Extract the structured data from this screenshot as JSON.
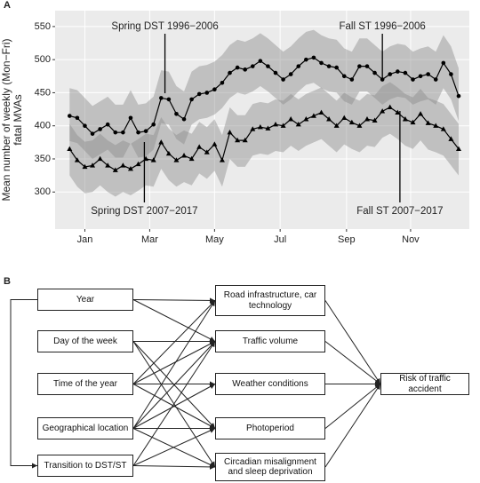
{
  "chart_data": {
    "type": "line",
    "panel_label": "A",
    "y_label": [
      "Mean number of weekly (Mon−Fri)",
      "fatal MVAs"
    ],
    "x": [
      1,
      2,
      3,
      4,
      5,
      6,
      7,
      8,
      9,
      10,
      11,
      12,
      13,
      14,
      15,
      16,
      17,
      18,
      19,
      20,
      21,
      22,
      23,
      24,
      25,
      26,
      27,
      28,
      29,
      30,
      31,
      32,
      33,
      34,
      35,
      36,
      37,
      38,
      39,
      40,
      41,
      42,
      43,
      44,
      45,
      46,
      47,
      48,
      49,
      50,
      51,
      52
    ],
    "xlim": [
      -0.9,
      53.4
    ],
    "xticks": [
      {
        "value": 3,
        "label": "Jan"
      },
      {
        "value": 11.5,
        "label": "Mar"
      },
      {
        "value": 20,
        "label": "May"
      },
      {
        "value": 28.6,
        "label": "Jul"
      },
      {
        "value": 37.3,
        "label": "Sep"
      },
      {
        "value": 45.7,
        "label": "Nov"
      }
    ],
    "ylim": [
      244,
      574
    ],
    "yticks": [
      300,
      350,
      400,
      450,
      500,
      550
    ],
    "grid": true,
    "series": [
      {
        "name": "1996−2006",
        "color": "#000000",
        "band_color": "#8c8c8c",
        "marker": "circle",
        "values": [
          415,
          412,
          400,
          388,
          395,
          402,
          390,
          390,
          412,
          390,
          392,
          402,
          442,
          440,
          418,
          410,
          440,
          448,
          450,
          455,
          465,
          480,
          488,
          485,
          490,
          498,
          490,
          480,
          470,
          478,
          490,
          500,
          503,
          495,
          490,
          488,
          475,
          470,
          490,
          490,
          480,
          470,
          478,
          482,
          480,
          470,
          475,
          478,
          470,
          495,
          478,
          445
        ],
        "upper": [
          457,
          454,
          442,
          430,
          437,
          444,
          432,
          432,
          454,
          432,
          434,
          444,
          484,
          482,
          460,
          452,
          482,
          490,
          492,
          497,
          507,
          522,
          530,
          527,
          532,
          540,
          532,
          522,
          512,
          520,
          532,
          542,
          545,
          537,
          532,
          530,
          517,
          512,
          532,
          532,
          522,
          512,
          520,
          524,
          522,
          512,
          517,
          520,
          512,
          537,
          520,
          487
        ],
        "lower": [
          377,
          374,
          362,
          350,
          357,
          364,
          352,
          352,
          374,
          352,
          354,
          364,
          404,
          402,
          380,
          372,
          402,
          410,
          412,
          417,
          427,
          442,
          450,
          447,
          452,
          460,
          452,
          442,
          432,
          440,
          452,
          462,
          465,
          457,
          452,
          450,
          437,
          432,
          452,
          452,
          442,
          432,
          440,
          444,
          442,
          432,
          437,
          440,
          432,
          457,
          440,
          407
        ]
      },
      {
        "name": "2007−2017",
        "color": "#000000",
        "band_color": "#8c8c8c",
        "marker": "triangle",
        "values": [
          365,
          348,
          338,
          340,
          350,
          340,
          333,
          340,
          335,
          342,
          350,
          348,
          375,
          358,
          348,
          355,
          350,
          368,
          360,
          372,
          348,
          390,
          378,
          378,
          395,
          398,
          396,
          402,
          400,
          410,
          402,
          410,
          415,
          420,
          410,
          400,
          412,
          405,
          400,
          410,
          408,
          422,
          428,
          420,
          410,
          405,
          418,
          404,
          400,
          395,
          380,
          365
        ],
        "upper": [
          403,
          386,
          376,
          378,
          388,
          378,
          371,
          378,
          373,
          380,
          388,
          386,
          413,
          396,
          386,
          393,
          388,
          406,
          398,
          410,
          386,
          428,
          416,
          416,
          433,
          436,
          434,
          440,
          438,
          448,
          440,
          448,
          453,
          458,
          448,
          438,
          450,
          443,
          438,
          448,
          446,
          460,
          466,
          458,
          448,
          443,
          456,
          442,
          438,
          433,
          418,
          403
        ],
        "lower": [
          325,
          308,
          298,
          300,
          310,
          300,
          293,
          300,
          295,
          302,
          310,
          308,
          335,
          318,
          308,
          315,
          310,
          328,
          320,
          332,
          308,
          350,
          338,
          338,
          355,
          358,
          356,
          362,
          360,
          370,
          362,
          370,
          375,
          380,
          370,
          360,
          372,
          365,
          360,
          370,
          368,
          382,
          388,
          380,
          370,
          365,
          378,
          364,
          360,
          355,
          340,
          325
        ]
      }
    ],
    "annotations": [
      {
        "text": "Spring DST 1996−2006",
        "x": 13.5,
        "side": "top"
      },
      {
        "text": "Fall ST 1996−2006",
        "x": 42.0,
        "side": "top"
      },
      {
        "text": "Spring DST 2007−2017",
        "x": 10.8,
        "side": "bottom"
      },
      {
        "text": "Fall ST 2007−2017",
        "x": 44.3,
        "side": "bottom"
      }
    ]
  },
  "diagram": {
    "panel_label": "B",
    "nodes": [
      {
        "label": "Year"
      },
      {
        "label": "Day of the week"
      },
      {
        "label": "Time of the year"
      },
      {
        "label": "Geographical location"
      },
      {
        "label": "Transition to DST/ST"
      },
      {
        "label": "Road infrastructure, car technology"
      },
      {
        "label": "Traffic volume"
      },
      {
        "label": "Weather conditions"
      },
      {
        "label": "Photoperiod"
      },
      {
        "label": "Circadian misalignment and sleep deprivation"
      },
      {
        "label": "Risk of traffic accident"
      }
    ]
  }
}
